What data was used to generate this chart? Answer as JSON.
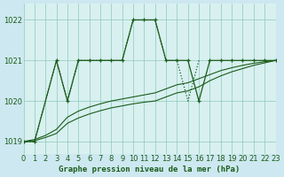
{
  "background_color": "#cde8f0",
  "plot_bg_color": "#d8f0f0",
  "grid_color": "#90c8b8",
  "line_color": "#1a5c1a",
  "title": "Graphe pression niveau de la mer (hPa)",
  "tick_fontsize": 6,
  "xlim": [
    0,
    23
  ],
  "ylim": [
    1018.7,
    1022.4
  ],
  "yticks": [
    1019,
    1020,
    1021,
    1022
  ],
  "xticks": [
    0,
    1,
    2,
    3,
    4,
    5,
    6,
    7,
    8,
    9,
    10,
    11,
    12,
    13,
    14,
    15,
    16,
    17,
    18,
    19,
    20,
    21,
    22,
    23
  ],
  "line_with_markers": {
    "x": [
      0,
      1,
      3,
      4,
      5,
      6,
      7,
      8,
      9,
      10,
      11,
      12,
      13,
      14,
      15,
      16,
      17,
      18,
      19,
      20,
      21,
      22,
      23
    ],
    "y": [
      1019,
      1019,
      1021,
      1020,
      1021,
      1021,
      1021,
      1021,
      1021,
      1022,
      1022,
      1022,
      1021,
      1021,
      1021,
      1020,
      1021,
      1021,
      1021,
      1021,
      1021,
      1021,
      1021
    ]
  },
  "dotted_diagonal": {
    "x": [
      0,
      1,
      3,
      4,
      5,
      6,
      7,
      8,
      9,
      10,
      11,
      12,
      13,
      14,
      15,
      16
    ],
    "y": [
      1019,
      1019,
      1021,
      1020,
      1021,
      1021,
      1021,
      1021,
      1021,
      1022,
      1022,
      1022,
      1021,
      1021,
      1020,
      1021
    ]
  },
  "smooth_line1": {
    "x": [
      0,
      1,
      2,
      3,
      4,
      5,
      6,
      7,
      8,
      9,
      10,
      11,
      12,
      13,
      14,
      15,
      16,
      17,
      18,
      19,
      20,
      21,
      22,
      23
    ],
    "y": [
      1019.0,
      1019.05,
      1019.15,
      1019.3,
      1019.6,
      1019.75,
      1019.85,
      1019.93,
      1020.0,
      1020.05,
      1020.1,
      1020.15,
      1020.2,
      1020.3,
      1020.4,
      1020.45,
      1020.55,
      1020.65,
      1020.75,
      1020.82,
      1020.88,
      1020.93,
      1020.97,
      1021.0
    ]
  },
  "smooth_line2": {
    "x": [
      0,
      1,
      2,
      3,
      4,
      5,
      6,
      7,
      8,
      9,
      10,
      11,
      12,
      13,
      14,
      15,
      16,
      17,
      18,
      19,
      20,
      21,
      22,
      23
    ],
    "y": [
      1019.0,
      1019.02,
      1019.1,
      1019.2,
      1019.45,
      1019.58,
      1019.68,
      1019.76,
      1019.83,
      1019.88,
      1019.93,
      1019.97,
      1020.0,
      1020.1,
      1020.2,
      1020.25,
      1020.35,
      1020.5,
      1020.62,
      1020.72,
      1020.8,
      1020.88,
      1020.94,
      1021.0
    ]
  }
}
